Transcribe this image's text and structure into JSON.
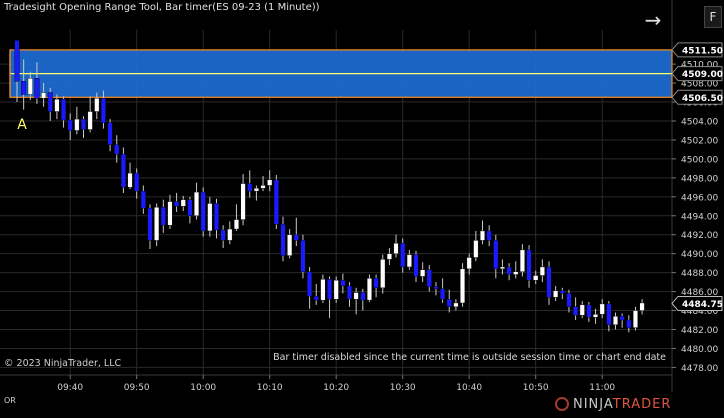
{
  "window": {
    "title": "Tradesight Opening Range Tool, Bar timer(ES 09-23 (1 Minute))",
    "copyright": "© 2023 NinjaTrader, LLC",
    "status_message": "Bar timer disabled since the current time is outside session time or chart end date",
    "tab_label": "OR",
    "f_button": "F",
    "arrow_icon": "→",
    "logo_ninja": "NINJA",
    "logo_trader": "TRADER"
  },
  "colors": {
    "background": "#000000",
    "up_candle": "#ffffff",
    "down_candle": "#1a1aff",
    "range_fill": "#1e6fd9",
    "range_border": "#ff8c1a",
    "midline": "#ffff66",
    "marker": "#ffff66"
  },
  "chart_data": {
    "type": "candlestick",
    "x_ticks": [
      "09:40",
      "09:50",
      "10:00",
      "10:10",
      "10:20",
      "10:30",
      "10:40",
      "10:50",
      "11:00"
    ],
    "y_ticks": [
      4478.0,
      4480.0,
      4482.0,
      4484.0,
      4486.0,
      4488.0,
      4490.0,
      4492.0,
      4494.0,
      4496.0,
      4498.0,
      4500.0,
      4502.0,
      4504.0,
      4506.0,
      4508.0,
      4510.0
    ],
    "ylim": [
      4477.2,
      4513.6
    ],
    "opening_range": {
      "high": "4511.50",
      "mid": "4509.00",
      "low": "4506.50",
      "high_v": 4511.5,
      "mid_v": 4509.0,
      "low_v": 4506.5
    },
    "current_price": "4484.75",
    "current_price_v": 4484.75,
    "marker_label": "A",
    "candles": [
      [
        4512.5,
        4508.2,
        4512.5,
        4506.0
      ],
      [
        4508.2,
        4506.8,
        4510.5,
        4505.2
      ],
      [
        4506.8,
        4508.5,
        4509.2,
        4506.2
      ],
      [
        4508.5,
        4506.4,
        4510.2,
        4505.8
      ],
      [
        4506.4,
        4507.0,
        4508.0,
        4505.5
      ],
      [
        4507.0,
        4505.0,
        4507.5,
        4504.0
      ],
      [
        4505.0,
        4506.3,
        4506.8,
        4504.2
      ],
      [
        4506.3,
        4504.1,
        4506.6,
        4503.3
      ],
      [
        4504.1,
        4503.0,
        4504.8,
        4502.0
      ],
      [
        4503.0,
        4504.2,
        4505.5,
        4502.6
      ],
      [
        4504.2,
        4503.1,
        4504.5,
        4502.2
      ],
      [
        4503.1,
        4505.0,
        4506.6,
        4502.8
      ],
      [
        4505.0,
        4506.4,
        4507.0,
        4504.2
      ],
      [
        4506.4,
        4503.8,
        4507.2,
        4503.2
      ],
      [
        4503.8,
        4501.5,
        4504.2,
        4500.8
      ],
      [
        4501.5,
        4500.5,
        4502.5,
        4499.6
      ],
      [
        4500.5,
        4497.0,
        4501.2,
        4496.4
      ],
      [
        4497.0,
        4498.5,
        4499.6,
        4496.8
      ],
      [
        4498.5,
        4496.6,
        4499.0,
        4495.8
      ],
      [
        4496.6,
        4494.8,
        4497.2,
        4494.2
      ],
      [
        4494.8,
        4491.4,
        4495.2,
        4490.5
      ],
      [
        4491.4,
        4494.9,
        4495.3,
        4490.8
      ],
      [
        4494.9,
        4493.0,
        4495.7,
        4492.2
      ],
      [
        4493.0,
        4495.5,
        4496.2,
        4492.6
      ],
      [
        4495.5,
        4495.0,
        4496.4,
        4494.4
      ],
      [
        4495.0,
        4495.7,
        4496.1,
        4494.5
      ],
      [
        4495.7,
        4494.0,
        4496.0,
        4493.2
      ],
      [
        4494.0,
        4496.5,
        4497.5,
        4493.6
      ],
      [
        4496.5,
        4492.4,
        4497.0,
        4491.8
      ],
      [
        4492.4,
        4495.3,
        4496.0,
        4491.8
      ],
      [
        4495.3,
        4492.5,
        4495.8,
        4491.6
      ],
      [
        4492.5,
        4491.4,
        4493.0,
        4490.6
      ],
      [
        4491.4,
        4492.6,
        4493.4,
        4491.0
      ],
      [
        4492.6,
        4493.6,
        4495.2,
        4492.4
      ],
      [
        4493.6,
        4497.4,
        4498.4,
        4493.0
      ],
      [
        4497.4,
        4496.6,
        4498.8,
        4495.9
      ],
      [
        4496.6,
        4496.9,
        4497.2,
        4495.6
      ],
      [
        4496.9,
        4497.2,
        4498.2,
        4496.6
      ],
      [
        4497.2,
        4497.8,
        4498.8,
        4496.6
      ],
      [
        4497.8,
        4493.1,
        4498.3,
        4492.6
      ],
      [
        4493.1,
        4489.8,
        4493.9,
        4489.2
      ],
      [
        4489.8,
        4492.0,
        4492.6,
        4489.5
      ],
      [
        4492.0,
        4491.4,
        4493.8,
        4490.8
      ],
      [
        4491.4,
        4488.1,
        4492.0,
        4487.4
      ],
      [
        4488.1,
        4485.5,
        4488.6,
        4484.2
      ],
      [
        4485.5,
        4485.1,
        4486.8,
        4484.6
      ],
      [
        4485.1,
        4487.3,
        4487.8,
        4484.8
      ],
      [
        4487.3,
        4485.2,
        4487.6,
        4483.2
      ],
      [
        4485.2,
        4487.2,
        4487.6,
        4484.8
      ],
      [
        4487.2,
        4486.6,
        4487.9,
        4485.8
      ],
      [
        4486.6,
        4485.2,
        4487.0,
        4484.4
      ],
      [
        4485.2,
        4485.9,
        4486.4,
        4483.6
      ],
      [
        4485.9,
        4485.1,
        4486.3,
        4484.0
      ],
      [
        4485.1,
        4487.4,
        4487.8,
        4484.9
      ],
      [
        4487.4,
        4486.4,
        4487.8,
        4485.4
      ],
      [
        4486.4,
        4489.4,
        4489.9,
        4485.8
      ],
      [
        4489.4,
        4490.0,
        4490.6,
        4488.8
      ],
      [
        4490.0,
        4491.1,
        4492.0,
        4489.6
      ],
      [
        4491.1,
        4488.6,
        4491.6,
        4488.0
      ],
      [
        4488.6,
        4489.9,
        4490.4,
        4488.3
      ],
      [
        4489.9,
        4487.6,
        4490.3,
        4487.0
      ],
      [
        4487.6,
        4488.3,
        4489.1,
        4487.0
      ],
      [
        4488.3,
        4486.5,
        4488.8,
        4486.0
      ],
      [
        4486.5,
        4486.3,
        4487.0,
        4485.6
      ],
      [
        4486.3,
        4485.2,
        4487.4,
        4484.8
      ],
      [
        4485.2,
        4484.4,
        4486.2,
        4483.8
      ],
      [
        4484.4,
        4484.8,
        4485.2,
        4484.0
      ],
      [
        4484.8,
        4488.4,
        4489.0,
        4484.4
      ],
      [
        4488.4,
        4489.6,
        4490.0,
        4487.8
      ],
      [
        4489.6,
        4491.4,
        4492.4,
        4489.2
      ],
      [
        4491.4,
        4492.4,
        4493.5,
        4491.0
      ],
      [
        4492.4,
        4491.4,
        4493.0,
        4490.8
      ],
      [
        4491.4,
        4488.4,
        4492.0,
        4487.4
      ],
      [
        4488.4,
        4488.6,
        4489.4,
        4487.8
      ],
      [
        4488.6,
        4487.8,
        4489.0,
        4487.2
      ],
      [
        4487.8,
        4488.1,
        4489.2,
        4487.4
      ],
      [
        4488.1,
        4490.4,
        4491.0,
        4487.6
      ],
      [
        4490.4,
        4487.2,
        4490.9,
        4486.4
      ],
      [
        4487.2,
        4487.7,
        4488.2,
        4486.8
      ],
      [
        4487.7,
        4488.6,
        4489.4,
        4487.0
      ],
      [
        4488.6,
        4485.4,
        4489.2,
        4484.6
      ],
      [
        4485.4,
        4486.1,
        4486.6,
        4485.0
      ],
      [
        4486.1,
        4485.8,
        4486.4,
        4485.2
      ],
      [
        4485.8,
        4484.4,
        4486.2,
        4483.8
      ],
      [
        4484.4,
        4483.5,
        4485.4,
        4483.0
      ],
      [
        4483.5,
        4484.6,
        4485.0,
        4483.2
      ],
      [
        4484.6,
        4483.3,
        4484.9,
        4482.8
      ],
      [
        4483.3,
        4483.6,
        4484.2,
        4482.6
      ],
      [
        4483.6,
        4484.7,
        4485.2,
        4483.2
      ],
      [
        4484.7,
        4482.5,
        4485.0,
        4481.8
      ],
      [
        4482.5,
        4483.4,
        4483.8,
        4482.0
      ],
      [
        4483.4,
        4483.0,
        4483.7,
        4482.2
      ],
      [
        4483.0,
        4482.2,
        4483.5,
        4481.7
      ],
      [
        4482.2,
        4484.0,
        4484.4,
        4481.9
      ],
      [
        4484.0,
        4484.8,
        4485.2,
        4483.6
      ]
    ]
  }
}
